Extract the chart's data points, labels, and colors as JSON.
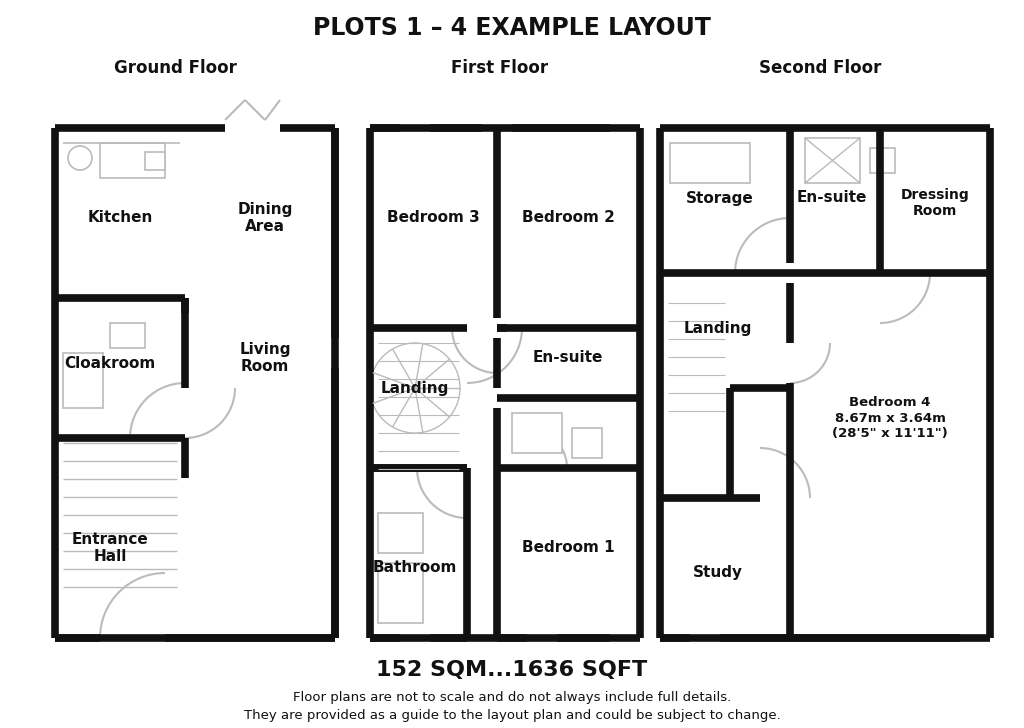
{
  "title": "PLOTS 1 – 4 EXAMPLE LAYOUT",
  "sqm_text": "152 SQM...1636 SQFT",
  "disclaimer1": "Floor plans are not to scale and do not always include full details.",
  "disclaimer2": "They are provided as a guide to the layout plan and could be subject to change.",
  "bg_color": "#ffffff",
  "wall_color": "#111111",
  "light_color": "#bbbbbb"
}
